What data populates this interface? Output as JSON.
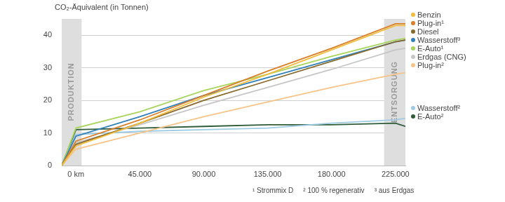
{
  "chart_data": {
    "type": "line",
    "y_label": "CO₂-Äquivalent (in Tonnen)",
    "x": [
      -10000,
      0,
      45000,
      90000,
      135000,
      180000,
      225000,
      232000
    ],
    "series": [
      {
        "name": "Benzin",
        "color": "#f2bd3c",
        "values": [
          0,
          6,
          13,
          21,
          28,
          35.5,
          43,
          43
        ]
      },
      {
        "name": "Plug-in¹",
        "color": "#d97f2a",
        "values": [
          0,
          7.5,
          14,
          21.5,
          29,
          36,
          43.5,
          43.5
        ]
      },
      {
        "name": "Diesel",
        "color": "#8a6a2c",
        "values": [
          0,
          6.5,
          13,
          20,
          26,
          32,
          38,
          38.5
        ]
      },
      {
        "name": "Wasserstoff³",
        "color": "#2f80b8",
        "values": [
          0,
          9,
          15,
          21.5,
          27,
          32.5,
          38,
          38.5
        ]
      },
      {
        "name": "E-Auto¹",
        "color": "#a8d45c",
        "values": [
          0,
          11.5,
          16.5,
          23,
          28,
          33.5,
          38.5,
          39
        ]
      },
      {
        "name": "Erdgas (CNG)",
        "color": "#c6c6c6",
        "values": [
          0,
          7,
          12.5,
          18.5,
          24,
          29.5,
          35.5,
          36
        ]
      },
      {
        "name": "Plug-in²",
        "color": "#f6c489",
        "values": [
          0,
          5,
          10,
          15,
          19.5,
          24,
          28,
          28.5
        ]
      },
      {
        "name": "Wasserstoff²",
        "color": "#9dcbe3",
        "values": [
          0,
          9.5,
          10.5,
          11,
          11.5,
          13,
          14,
          14.5
        ]
      },
      {
        "name": "E-Auto²",
        "color": "#2e5c39",
        "values": [
          0,
          11,
          11.5,
          12,
          12.5,
          12.5,
          13,
          12
        ]
      }
    ],
    "xlim": [
      -10000,
      232000
    ],
    "xticks": [
      {
        "value": 0,
        "label": "0 km"
      },
      {
        "value": 45000,
        "label": "45.000"
      },
      {
        "value": 90000,
        "label": "90.000"
      },
      {
        "value": 135000,
        "label": "135.000"
      },
      {
        "value": 180000,
        "label": "180.000"
      },
      {
        "value": 225000,
        "label": "225.000"
      }
    ],
    "ylim": [
      0,
      45
    ],
    "yticks": [
      0,
      10,
      20,
      30,
      40
    ],
    "grid": true,
    "legend": "right",
    "bands": [
      {
        "label": "PRODUKTION",
        "xlim": [
          -10000,
          4000
        ]
      },
      {
        "label": "ENTSORGUNG",
        "xlim": [
          217000,
          232000
        ]
      }
    ],
    "annotations": [
      "¹ Strommix D",
      "² 100 % regenerativ",
      "³ aus Erdgas"
    ]
  }
}
